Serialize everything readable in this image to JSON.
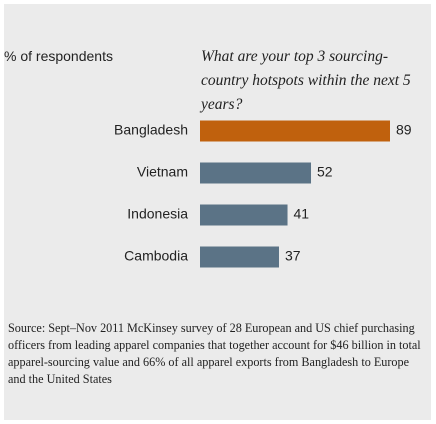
{
  "chart_data": {
    "type": "bar",
    "orientation": "horizontal",
    "title": "What are your top 3 sourcing-country hotspots within the next 5 years?",
    "axis_label": "% of respondents",
    "categories": [
      "Bangladesh",
      "Vietnam",
      "Indonesia",
      "Cambodia"
    ],
    "values": [
      89,
      52,
      41,
      37
    ],
    "colors": [
      "#c0610d",
      "#5b7386",
      "#5b7386",
      "#5b7386"
    ],
    "note": "Source: Sept–Nov 2011 McKinsey survey of 28 European and US chief purchasing officers from leading apparel companies that together account for $46 billion in total apparel-sourcing value and 66% of all apparel exports from Bangladesh to Europe and the United States"
  }
}
